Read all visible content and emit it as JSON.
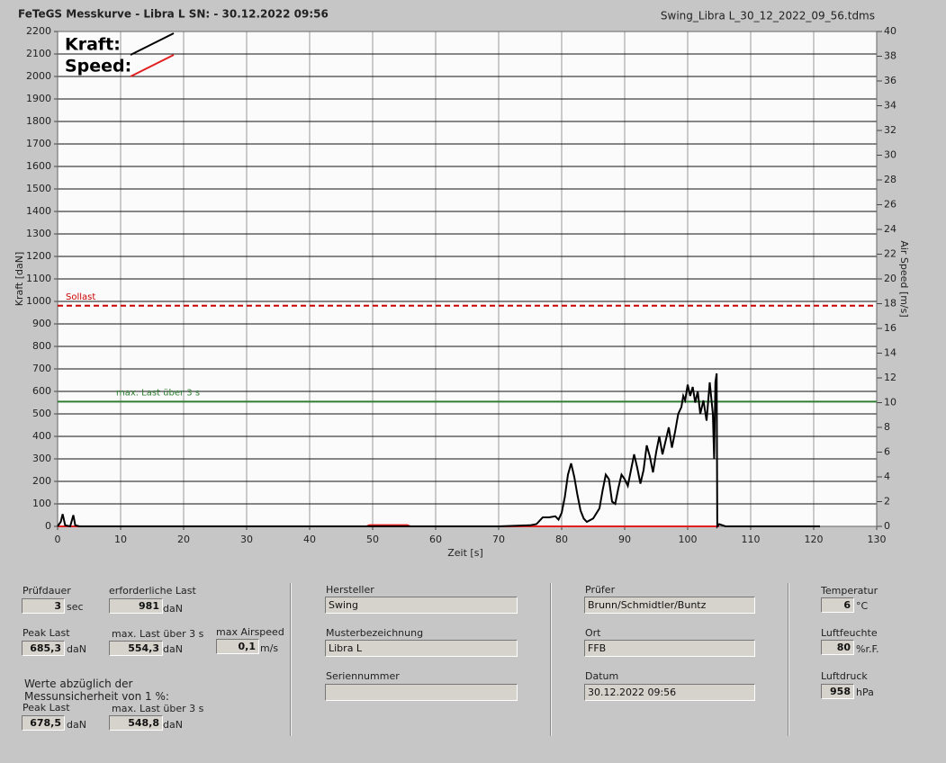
{
  "header": {
    "title": "FeTeGS Messkurve - Libra L  SN:  - 30.12.2022 09:56",
    "file": "Swing_Libra L_30_12_2022_09_56.tdms"
  },
  "chart_data": {
    "type": "line",
    "xlabel": "Zeit [s]",
    "ylabel": "Kraft [daN]",
    "y2label": "Air Speed [m/s]",
    "xlim": [
      0,
      130
    ],
    "xticks": [
      0,
      10,
      20,
      30,
      40,
      50,
      60,
      70,
      80,
      90,
      100,
      110,
      120,
      130
    ],
    "ylim": [
      0,
      2200
    ],
    "yticks": [
      0,
      100,
      200,
      300,
      400,
      500,
      600,
      700,
      800,
      900,
      1000,
      1100,
      1200,
      1300,
      1400,
      1500,
      1600,
      1700,
      1800,
      1900,
      2000,
      2100,
      2200
    ],
    "y2lim": [
      0,
      40
    ],
    "y2ticks": [
      0,
      2,
      4,
      6,
      8,
      10,
      12,
      14,
      16,
      18,
      20,
      22,
      24,
      26,
      28,
      30,
      32,
      34,
      36,
      38,
      40
    ],
    "grid": true,
    "series": [
      {
        "name": "Kraft:",
        "color": "#000000",
        "x": [
          0,
          0.5,
          0.8,
          1.2,
          2,
          2.5,
          2.8,
          3.5,
          70,
          75,
          76,
          77,
          78,
          79,
          79.5,
          80,
          80.5,
          81,
          81.5,
          82,
          82.5,
          83,
          83.5,
          84,
          85,
          86,
          86.5,
          87,
          87.5,
          88,
          88.5,
          89,
          89.5,
          90,
          90.5,
          91,
          91.5,
          92,
          92.5,
          93,
          93.5,
          94,
          94.5,
          95,
          95.5,
          96,
          96.5,
          97,
          97.5,
          98,
          98.5,
          99,
          99.3,
          99.6,
          100,
          100.4,
          100.8,
          101.2,
          101.6,
          102,
          102.5,
          103,
          103.5,
          104,
          104.2,
          104.4,
          104.6,
          104.7,
          105,
          106,
          121
        ],
        "values": [
          0,
          20,
          55,
          5,
          0,
          50,
          5,
          0,
          0,
          5,
          10,
          40,
          40,
          45,
          30,
          60,
          130,
          230,
          280,
          220,
          140,
          70,
          35,
          20,
          35,
          80,
          160,
          230,
          210,
          110,
          100,
          170,
          230,
          210,
          180,
          250,
          320,
          260,
          190,
          250,
          360,
          310,
          240,
          330,
          400,
          320,
          380,
          440,
          350,
          420,
          500,
          530,
          580,
          560,
          630,
          580,
          620,
          550,
          600,
          500,
          560,
          470,
          640,
          500,
          300,
          640,
          680,
          0,
          10,
          0,
          0
        ]
      },
      {
        "name": "Speed:",
        "color": "#e02020",
        "axis": "y2",
        "x": [
          0,
          49,
          49.5,
          55.5,
          56,
          105
        ],
        "values": [
          0,
          0,
          0.1,
          0.1,
          0,
          0
        ]
      }
    ],
    "annotations": [
      {
        "text": "Sollast",
        "value": 981,
        "color": "#cc0000",
        "dashed": true
      },
      {
        "text": "max. Last über  3 s",
        "value": 554.3,
        "color": "#2e7d32",
        "dashed": false
      }
    ]
  },
  "panel": {
    "pruefdauer": {
      "label": "Prüfdauer",
      "value": "3",
      "unit": "sec"
    },
    "erf_last": {
      "label": "erforderliche Last",
      "value": "981",
      "unit": "daN"
    },
    "peak": {
      "label": "Peak Last",
      "value": "685,3",
      "unit": "daN"
    },
    "max3": {
      "label": "max. Last über  3 s",
      "value": "554,3",
      "unit": "daN"
    },
    "airspeed": {
      "label": "max Airspeed",
      "value": "0,1",
      "unit": "m/s"
    },
    "note": [
      "Werte abzüglich der",
      "Messunsicherheit von 1  %:"
    ],
    "peak_corr": {
      "label": "Peak Last",
      "value": "678,5",
      "unit": "daN"
    },
    "max3_corr": {
      "label": "max. Last über  3 s",
      "value": "548,8",
      "unit": "daN"
    },
    "hersteller": {
      "label": "Hersteller",
      "value": "Swing"
    },
    "muster": {
      "label": "Musterbezeichnung",
      "value": "Libra L"
    },
    "serie": {
      "label": "Seriennummer"
    },
    "pruefer": {
      "label": "Prüfer",
      "value": "Brunn/Schmidtler/Buntz"
    },
    "ort": {
      "label": "Ort",
      "value": "FFB"
    },
    "datum": {
      "label": "Datum",
      "value": "30.12.2022 09:56"
    },
    "temp": {
      "label": "Temperatur",
      "value": "6",
      "unit": "°C"
    },
    "feuchte": {
      "label": "Luftfeuchte",
      "value": "80",
      "unit": "%r.F."
    },
    "druck": {
      "label": "Luftdruck",
      "value": "958",
      "unit": "hPa"
    }
  }
}
